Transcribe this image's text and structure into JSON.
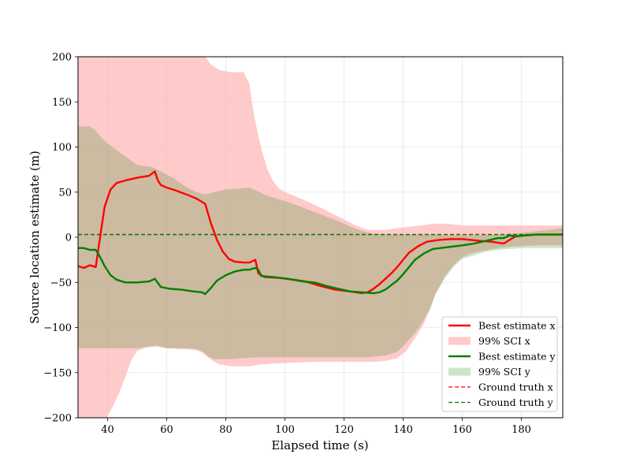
{
  "chart_data": {
    "type": "line",
    "title": "",
    "xlabel": "Elapsed time (s)",
    "ylabel": "Source location estimate (m)",
    "xlim": [
      30,
      194
    ],
    "ylim": [
      -200,
      200
    ],
    "grid": true,
    "legend_position": "lower-right",
    "x_ticks": [
      40,
      60,
      80,
      100,
      120,
      140,
      160,
      180
    ],
    "y_ticks": [
      -200,
      -150,
      -100,
      -50,
      0,
      50,
      100,
      150,
      200
    ],
    "x_tick_labels": [
      "40",
      "60",
      "80",
      "100",
      "120",
      "140",
      "160",
      "180"
    ],
    "y_tick_labels": [
      "−200",
      "−150",
      "−100",
      "−50",
      "0",
      "50",
      "100",
      "150",
      "200"
    ],
    "colors": {
      "x": "#ff0000",
      "y": "#008000",
      "ci_x": "#ffb3b3",
      "ci_y": "#008000"
    },
    "series": [
      {
        "name": "Best estimate x",
        "kind": "line",
        "points": [
          [
            30,
            -32
          ],
          [
            32,
            -34
          ],
          [
            34,
            -31
          ],
          [
            36,
            -33
          ],
          [
            37,
            -10
          ],
          [
            38,
            12
          ],
          [
            39,
            34
          ],
          [
            41,
            53
          ],
          [
            43,
            60
          ],
          [
            46,
            63
          ],
          [
            50,
            66
          ],
          [
            54,
            68
          ],
          [
            56,
            73
          ],
          [
            57,
            63
          ],
          [
            58,
            58
          ],
          [
            60,
            55
          ],
          [
            63,
            52
          ],
          [
            67,
            47
          ],
          [
            70,
            43
          ],
          [
            73,
            37
          ],
          [
            75,
            15
          ],
          [
            77,
            -3
          ],
          [
            79,
            -16
          ],
          [
            81,
            -24
          ],
          [
            83,
            -27
          ],
          [
            86,
            -28
          ],
          [
            88,
            -28
          ],
          [
            90,
            -25
          ],
          [
            91,
            -40
          ],
          [
            93,
            -44
          ],
          [
            98,
            -45
          ],
          [
            103,
            -47
          ],
          [
            107,
            -49
          ],
          [
            112,
            -54
          ],
          [
            117,
            -58
          ],
          [
            122,
            -60
          ],
          [
            126,
            -62
          ],
          [
            128,
            -61
          ],
          [
            130,
            -57
          ],
          [
            132,
            -52
          ],
          [
            134,
            -46
          ],
          [
            136,
            -40
          ],
          [
            138,
            -33
          ],
          [
            140,
            -25
          ],
          [
            142,
            -17
          ],
          [
            145,
            -10
          ],
          [
            148,
            -5
          ],
          [
            152,
            -3
          ],
          [
            156,
            -2
          ],
          [
            160,
            -2
          ],
          [
            163,
            -3
          ],
          [
            166,
            -4
          ],
          [
            170,
            -5
          ],
          [
            174,
            -7
          ],
          [
            176,
            -3
          ],
          [
            178,
            1
          ],
          [
            181,
            2
          ],
          [
            185,
            3
          ],
          [
            190,
            3
          ],
          [
            194,
            3
          ]
        ]
      },
      {
        "name": "99% SCI x",
        "kind": "band",
        "upper": [
          [
            30,
            260
          ],
          [
            55,
            260
          ],
          [
            70,
            260
          ],
          [
            73,
            200
          ],
          [
            75,
            191
          ],
          [
            78,
            185
          ],
          [
            82,
            183
          ],
          [
            86,
            183
          ],
          [
            88,
            170
          ],
          [
            89,
            145
          ],
          [
            90,
            128
          ],
          [
            92,
            98
          ],
          [
            94,
            76
          ],
          [
            96,
            62
          ],
          [
            98,
            54
          ],
          [
            100,
            50
          ],
          [
            106,
            42
          ],
          [
            112,
            33
          ],
          [
            118,
            23
          ],
          [
            124,
            13
          ],
          [
            128,
            8
          ],
          [
            134,
            8
          ],
          [
            140,
            11
          ],
          [
            146,
            13
          ],
          [
            150,
            15
          ],
          [
            154,
            15
          ],
          [
            158,
            14
          ],
          [
            162,
            13
          ],
          [
            170,
            13
          ],
          [
            180,
            13
          ],
          [
            194,
            13
          ]
        ],
        "lower": [
          [
            30,
            -260
          ],
          [
            36,
            -260
          ],
          [
            38,
            -215
          ],
          [
            40,
            -198
          ],
          [
            42,
            -186
          ],
          [
            44,
            -172
          ],
          [
            46,
            -155
          ],
          [
            48,
            -136
          ],
          [
            50,
            -126
          ],
          [
            53,
            -122
          ],
          [
            57,
            -121
          ],
          [
            60,
            -123
          ],
          [
            66,
            -124
          ],
          [
            70,
            -125
          ],
          [
            72,
            -128
          ],
          [
            74,
            -133
          ],
          [
            76,
            -138
          ],
          [
            78,
            -141
          ],
          [
            82,
            -143
          ],
          [
            88,
            -143
          ],
          [
            92,
            -141
          ],
          [
            96,
            -140
          ],
          [
            102,
            -139
          ],
          [
            110,
            -138
          ],
          [
            120,
            -138
          ],
          [
            130,
            -138
          ],
          [
            134,
            -137
          ],
          [
            138,
            -134
          ],
          [
            141,
            -126
          ],
          [
            144,
            -112
          ],
          [
            147,
            -96
          ],
          [
            149,
            -80
          ],
          [
            151,
            -62
          ],
          [
            154,
            -44
          ],
          [
            157,
            -31
          ],
          [
            160,
            -22
          ],
          [
            163,
            -18
          ],
          [
            167,
            -15
          ],
          [
            172,
            -12
          ],
          [
            178,
            -10
          ],
          [
            186,
            -9
          ],
          [
            194,
            -9
          ]
        ]
      },
      {
        "name": "Best estimate y",
        "kind": "line",
        "points": [
          [
            30,
            -12
          ],
          [
            32,
            -12
          ],
          [
            34,
            -14
          ],
          [
            36,
            -14
          ],
          [
            37,
            -19
          ],
          [
            39,
            -32
          ],
          [
            41,
            -42
          ],
          [
            43,
            -47
          ],
          [
            46,
            -50
          ],
          [
            50,
            -50
          ],
          [
            54,
            -49
          ],
          [
            56,
            -46
          ],
          [
            58,
            -55
          ],
          [
            61,
            -57
          ],
          [
            65,
            -58
          ],
          [
            69,
            -60
          ],
          [
            72,
            -61
          ],
          [
            73,
            -63
          ],
          [
            75,
            -56
          ],
          [
            77,
            -48
          ],
          [
            80,
            -42
          ],
          [
            83,
            -38
          ],
          [
            86,
            -36
          ],
          [
            88,
            -36
          ],
          [
            90,
            -34
          ],
          [
            91,
            -36
          ],
          [
            92,
            -43
          ],
          [
            96,
            -44
          ],
          [
            101,
            -46
          ],
          [
            106,
            -49
          ],
          [
            110,
            -50
          ],
          [
            114,
            -54
          ],
          [
            118,
            -57
          ],
          [
            122,
            -60
          ],
          [
            126,
            -61
          ],
          [
            130,
            -62
          ],
          [
            132,
            -61
          ],
          [
            134,
            -58
          ],
          [
            136,
            -53
          ],
          [
            138,
            -48
          ],
          [
            140,
            -41
          ],
          [
            142,
            -33
          ],
          [
            144,
            -25
          ],
          [
            147,
            -18
          ],
          [
            150,
            -13
          ],
          [
            155,
            -11
          ],
          [
            160,
            -9
          ],
          [
            164,
            -7
          ],
          [
            168,
            -4
          ],
          [
            172,
            -1
          ],
          [
            174,
            -1
          ],
          [
            176,
            2
          ],
          [
            178,
            1
          ],
          [
            181,
            2
          ],
          [
            185,
            3
          ],
          [
            190,
            3
          ],
          [
            194,
            3
          ]
        ]
      },
      {
        "name": "99% SCI y",
        "kind": "band",
        "upper": [
          [
            30,
            123
          ],
          [
            34,
            123
          ],
          [
            36,
            118
          ],
          [
            38,
            110
          ],
          [
            40,
            104
          ],
          [
            42,
            99
          ],
          [
            45,
            92
          ],
          [
            48,
            85
          ],
          [
            50,
            80
          ],
          [
            55,
            78
          ],
          [
            58,
            73
          ],
          [
            62,
            66
          ],
          [
            66,
            57
          ],
          [
            70,
            50
          ],
          [
            72,
            48
          ],
          [
            74,
            48
          ],
          [
            76,
            50
          ],
          [
            80,
            53
          ],
          [
            84,
            54
          ],
          [
            88,
            55
          ],
          [
            90,
            52
          ],
          [
            94,
            46
          ],
          [
            98,
            42
          ],
          [
            102,
            38
          ],
          [
            106,
            33
          ],
          [
            110,
            28
          ],
          [
            114,
            23
          ],
          [
            118,
            18
          ],
          [
            122,
            12
          ],
          [
            126,
            7
          ],
          [
            130,
            4
          ],
          [
            136,
            3
          ],
          [
            142,
            3
          ],
          [
            150,
            3
          ],
          [
            158,
            2
          ],
          [
            166,
            2
          ],
          [
            172,
            3
          ],
          [
            180,
            5
          ],
          [
            186,
            7
          ],
          [
            194,
            10
          ]
        ],
        "lower": [
          [
            30,
            -123
          ],
          [
            50,
            -123
          ],
          [
            56,
            -120
          ],
          [
            60,
            -123
          ],
          [
            68,
            -123
          ],
          [
            70,
            -124
          ],
          [
            72,
            -126
          ],
          [
            74,
            -132
          ],
          [
            76,
            -135
          ],
          [
            78,
            -135
          ],
          [
            82,
            -135
          ],
          [
            86,
            -134
          ],
          [
            90,
            -133
          ],
          [
            96,
            -133
          ],
          [
            102,
            -133
          ],
          [
            110,
            -133
          ],
          [
            120,
            -133
          ],
          [
            128,
            -133
          ],
          [
            134,
            -131
          ],
          [
            138,
            -127
          ],
          [
            140,
            -121
          ],
          [
            143,
            -110
          ],
          [
            146,
            -97
          ],
          [
            149,
            -80
          ],
          [
            151,
            -63
          ],
          [
            154,
            -46
          ],
          [
            157,
            -33
          ],
          [
            160,
            -24
          ],
          [
            164,
            -20
          ],
          [
            168,
            -16
          ],
          [
            172,
            -14
          ],
          [
            176,
            -13
          ],
          [
            180,
            -12
          ],
          [
            186,
            -12
          ],
          [
            194,
            -12
          ]
        ]
      },
      {
        "name": "Ground truth x",
        "kind": "hline",
        "y": 3
      },
      {
        "name": "Ground truth y",
        "kind": "hline",
        "y": 3
      }
    ]
  }
}
